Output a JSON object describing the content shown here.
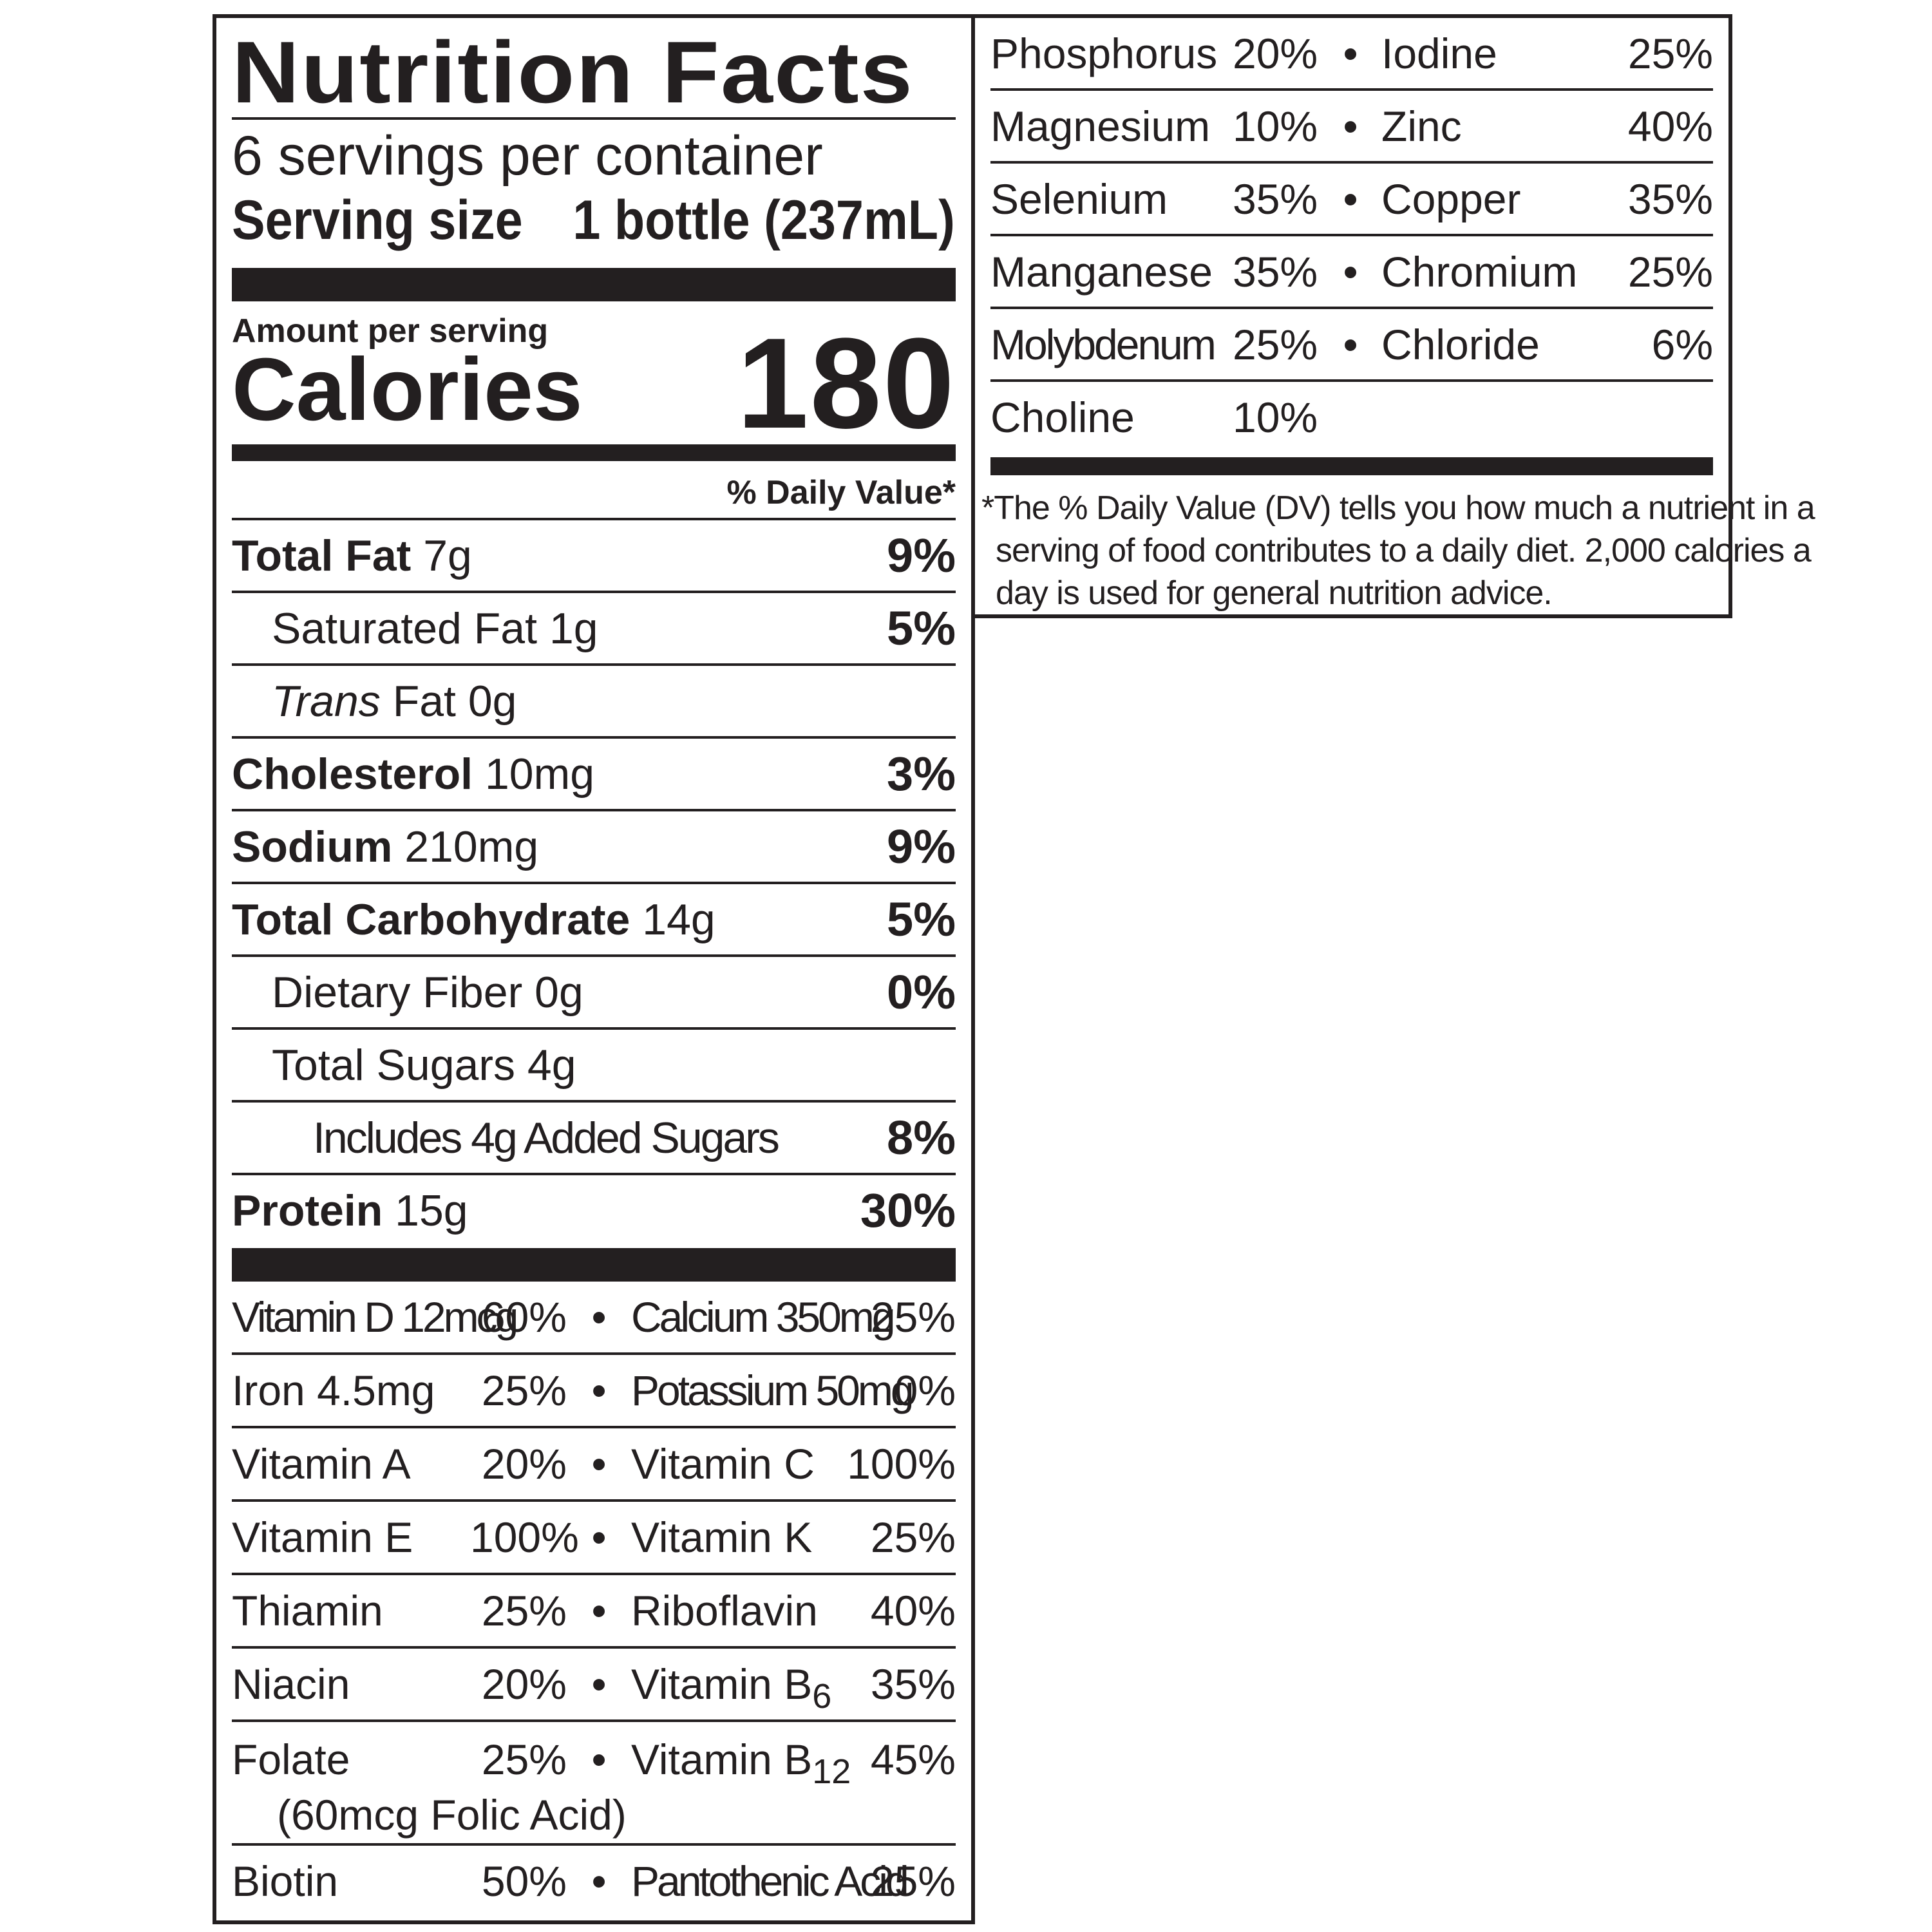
{
  "title": "Nutrition Facts",
  "servings_per_container": "6 servings per container",
  "serving_size_label": "Serving size",
  "serving_size_value": "1 bottle (237mL)",
  "amount_per_serving": "Amount per serving",
  "calories_label": "Calories",
  "calories_value": "180",
  "daily_value_header": "% Daily Value*",
  "nutrients": [
    {
      "name": "Total Fat",
      "amount": "7g",
      "dv": "9%"
    },
    {
      "name": "Saturated Fat",
      "amount": "1g",
      "dv": "5%"
    },
    {
      "name_italic": "Trans",
      "name": "Fat",
      "amount": "0g",
      "dv": ""
    },
    {
      "name": "Cholesterol",
      "amount": "10mg",
      "dv": "3%"
    },
    {
      "name": "Sodium",
      "amount": "210mg",
      "dv": "9%"
    },
    {
      "name": "Total Carbohydrate",
      "amount": "14g",
      "dv": "5%"
    },
    {
      "name": "Dietary Fiber",
      "amount": "0g",
      "dv": "0%"
    },
    {
      "name": "Total Sugars",
      "amount": "4g",
      "dv": ""
    },
    {
      "name": "Includes 4g Added Sugars",
      "amount": "",
      "dv": "8%"
    },
    {
      "name": "Protein",
      "amount": "15g",
      "dv": "30%"
    }
  ],
  "bullet": "•",
  "vitamins_left": [
    {
      "n1": "Vitamin D 12mcg",
      "p1": "60%",
      "n2": "Calcium 350mg",
      "p2": "25%"
    },
    {
      "n1": "Iron 4.5mg",
      "p1": "25%",
      "n2": "Potassium 50mg",
      "p2": "0%"
    },
    {
      "n1": "Vitamin A",
      "p1": "20%",
      "n2": "Vitamin C",
      "p2": "100%"
    },
    {
      "n1": "Vitamin E",
      "p1": "100%",
      "n2": "Vitamin K",
      "p2": "25%"
    },
    {
      "n1": "Thiamin",
      "p1": "25%",
      "n2": "Riboflavin",
      "p2": "40%"
    },
    {
      "n1": "Niacin",
      "p1": "20%",
      "n2": "Vitamin B",
      "n2_sub": "6",
      "p2": "35%"
    },
    {
      "n1": "Folate",
      "p1": "25%",
      "n2": "Vitamin B",
      "n2_sub": "12",
      "p2": "45%",
      "note": "(60mcg Folic Acid)"
    },
    {
      "n1": "Biotin",
      "p1": "50%",
      "n2": "Pantothenic Acid",
      "p2": "25%"
    }
  ],
  "minerals_right": [
    {
      "n1": "Phosphorus",
      "p1": "20%",
      "n2": "Iodine",
      "p2": "25%"
    },
    {
      "n1": "Magnesium",
      "p1": "10%",
      "n2": "Zinc",
      "p2": "40%"
    },
    {
      "n1": "Selenium",
      "p1": "35%",
      "n2": "Copper",
      "p2": "35%"
    },
    {
      "n1": "Manganese",
      "p1": "35%",
      "n2": "Chromium",
      "p2": "25%"
    },
    {
      "n1": "Molybdenum",
      "p1": "25%",
      "n2": "Chloride",
      "p2": "6%"
    },
    {
      "n1": "Choline",
      "p1": "10%"
    }
  ],
  "footnote_lines": [
    "*The % Daily Value (DV) tells you how much a nutrient in a",
    "serving of food contributes to a daily diet. 2,000 calories a",
    "day is used for general nutrition advice."
  ]
}
